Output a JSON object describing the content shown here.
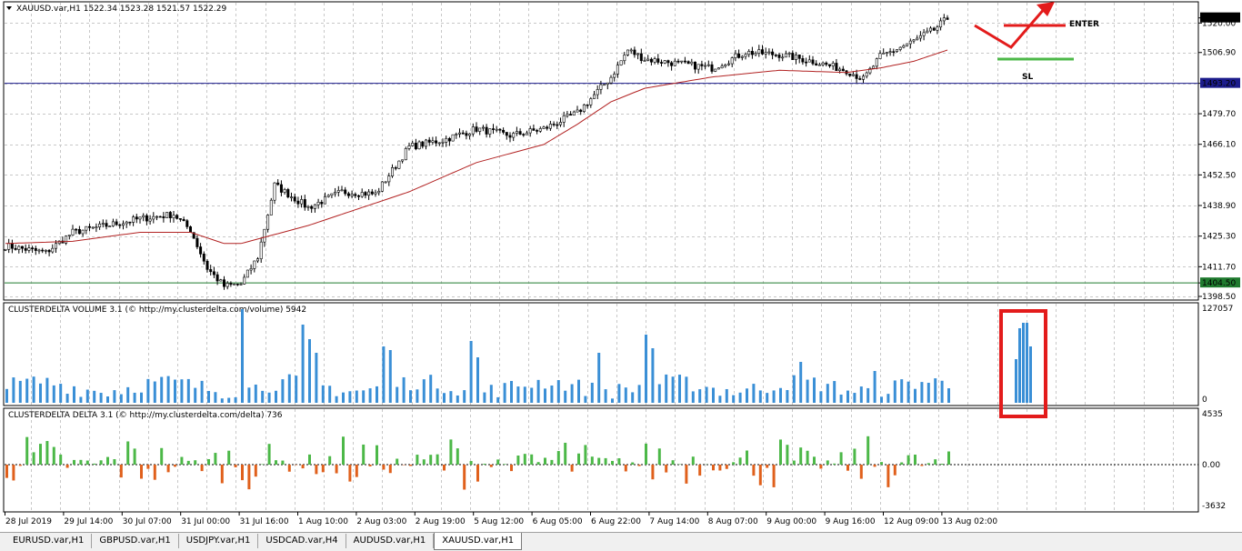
{
  "main_chart": {
    "header": "XAUUSD.var,H1  1522.34 1523.28 1521.57 1522.29",
    "price_labels": [
      "1522.29",
      "1520.00",
      "1506.90",
      "1493.20",
      "1479.70",
      "1466.10",
      "1452.50",
      "1438.90",
      "1425.30",
      "1411.70",
      "1404.50",
      "1398.50"
    ],
    "hlines": [
      {
        "label": "1493.20",
        "color": "#1c1c8c"
      },
      {
        "label": "1404.50",
        "color": "#1f7a2e"
      }
    ],
    "colors": {
      "candle": "#000000",
      "ma": "#b22222",
      "grid": "#c8c8c8"
    }
  },
  "annotations": {
    "enter_label": "ENTER",
    "sl_label": "SL",
    "enter_color": "#e31b1b",
    "sl_color": "#4cb848"
  },
  "volume_panel": {
    "header": "CLUSTERDELTA VOLUME 3.1 (© http://my.clusterdelta.com/volume) 5942",
    "scale_top": "127057",
    "scale_bottom": "0",
    "bar_color": "#3a8fd6",
    "highlight_color": "#e31b1b"
  },
  "delta_panel": {
    "header": "CLUSTERDELTA DELTA 3.1 (© http://my.clusterdelta.com/delta) 736",
    "scale_top": "4535",
    "scale_mid": "0.00",
    "scale_bottom": "-3632",
    "pos_color": "#4cb848",
    "neg_color": "#e0601c"
  },
  "time_axis": [
    "28 Jul 2019",
    "29 Jul 14:00",
    "30 Jul 07:00",
    "31 Jul 00:00",
    "31 Jul 16:00",
    "1 Aug 10:00",
    "2 Aug 03:00",
    "2 Aug 19:00",
    "5 Aug 12:00",
    "6 Aug 05:00",
    "6 Aug 22:00",
    "7 Aug 14:00",
    "8 Aug 07:00",
    "9 Aug 00:00",
    "9 Aug 16:00",
    "12 Aug 09:00",
    "13 Aug 02:00"
  ],
  "tabs": [
    "EURUSD.var,H1",
    "GBPUSD.var,H1",
    "USDJPY.var,H1",
    "USDCAD.var,H4",
    "AUDUSD.var,H1",
    "XAUUSD.var,H1"
  ],
  "chart_data": {
    "type": "candlestick",
    "title": "XAUUSD.var,H1",
    "ylim": [
      1398.5,
      1527
    ],
    "close_anchors": [
      [
        0,
        1421
      ],
      [
        12,
        1418
      ],
      [
        20,
        1427
      ],
      [
        30,
        1430
      ],
      [
        40,
        1433
      ],
      [
        50,
        1435
      ],
      [
        55,
        1428
      ],
      [
        60,
        1411
      ],
      [
        65,
        1403
      ],
      [
        70,
        1404
      ],
      [
        75,
        1416
      ],
      [
        80,
        1448
      ],
      [
        90,
        1438
      ],
      [
        100,
        1445
      ],
      [
        110,
        1444
      ],
      [
        120,
        1465
      ],
      [
        130,
        1468
      ],
      [
        140,
        1473
      ],
      [
        150,
        1470
      ],
      [
        160,
        1473
      ],
      [
        170,
        1480
      ],
      [
        180,
        1496
      ],
      [
        185,
        1508
      ],
      [
        190,
        1504
      ],
      [
        200,
        1502
      ],
      [
        210,
        1500
      ],
      [
        220,
        1507
      ],
      [
        230,
        1506
      ],
      [
        240,
        1503
      ],
      [
        250,
        1499
      ],
      [
        255,
        1495
      ],
      [
        260,
        1505
      ],
      [
        270,
        1512
      ],
      [
        276,
        1517
      ],
      [
        280,
        1522
      ]
    ],
    "ma_anchors": [
      [
        0,
        1422
      ],
      [
        20,
        1423
      ],
      [
        40,
        1427
      ],
      [
        55,
        1427
      ],
      [
        65,
        1422
      ],
      [
        70,
        1422
      ],
      [
        90,
        1430
      ],
      [
        120,
        1445
      ],
      [
        140,
        1458
      ],
      [
        160,
        1466
      ],
      [
        170,
        1475
      ],
      [
        180,
        1485
      ],
      [
        190,
        1491
      ],
      [
        210,
        1496
      ],
      [
        230,
        1499
      ],
      [
        250,
        1498
      ],
      [
        260,
        1500
      ],
      [
        270,
        1503
      ],
      [
        280,
        1508
      ]
    ]
  }
}
